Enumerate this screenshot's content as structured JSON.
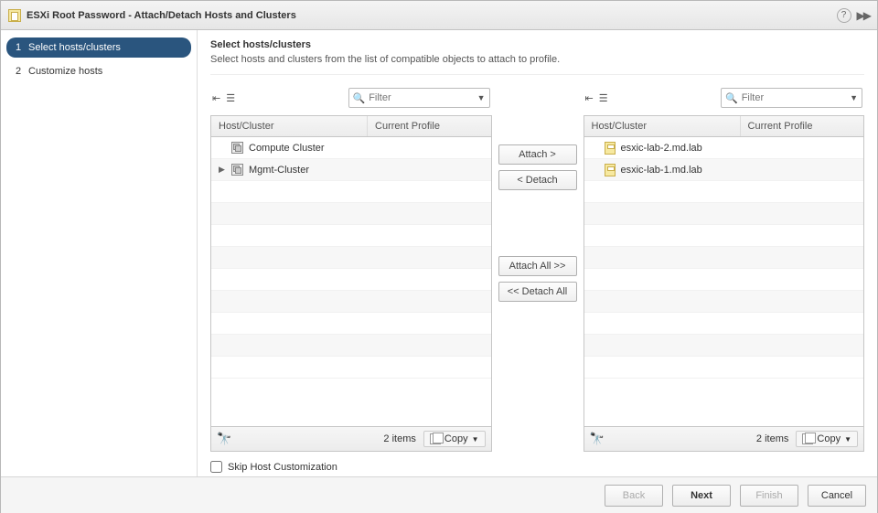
{
  "window": {
    "title": "ESXi Root Password - Attach/Detach Hosts and Clusters"
  },
  "wizard_steps": [
    {
      "num": "1",
      "label": "Select hosts/clusters",
      "active": true
    },
    {
      "num": "2",
      "label": "Customize hosts",
      "active": false
    }
  ],
  "page": {
    "title": "Select hosts/clusters",
    "subtitle": "Select hosts and clusters from the list of compatible objects to attach to profile."
  },
  "columns": {
    "host": "Host/Cluster",
    "profile": "Current Profile"
  },
  "filter_placeholder": "Filter",
  "left_items": [
    {
      "type": "cluster",
      "expander": "",
      "label": "Compute Cluster"
    },
    {
      "type": "cluster",
      "expander": "▶",
      "label": "Mgmt-Cluster"
    }
  ],
  "right_items": [
    {
      "type": "host",
      "label": "esxic-lab-2.md.lab"
    },
    {
      "type": "host",
      "label": "esxic-lab-1.md.lab"
    }
  ],
  "buttons": {
    "attach": "Attach >",
    "detach": "< Detach",
    "attach_all": "Attach All >>",
    "detach_all": "<< Detach All"
  },
  "footer_count": {
    "left": "2 items",
    "right": "2 items"
  },
  "copy_label": "Copy",
  "skip_label": "Skip Host Customization",
  "nav": {
    "back": "Back",
    "next": "Next",
    "finish": "Finish",
    "cancel": "Cancel"
  }
}
